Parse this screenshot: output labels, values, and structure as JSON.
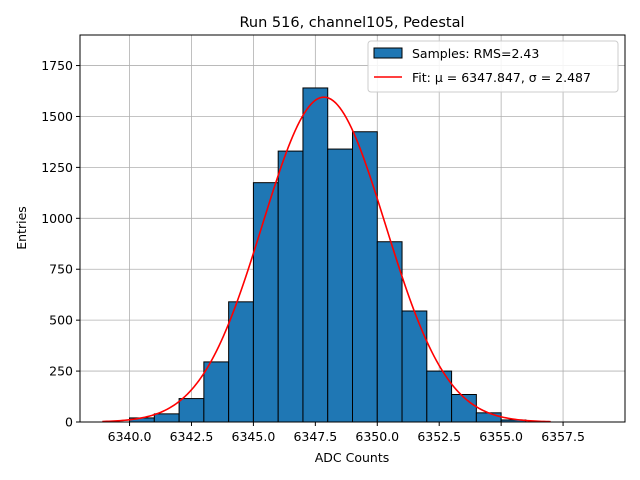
{
  "chart_data": {
    "type": "bar",
    "title": "Run 516, channel105, Pedestal",
    "xlabel": "ADC Counts",
    "ylabel": "Entries",
    "xlim": [
      6338.0,
      6360.0
    ],
    "ylim": [
      0,
      1900
    ],
    "grid": true,
    "legend_position": "top-right",
    "x_ticks": [
      {
        "value": 6340.0,
        "label": "6340.0"
      },
      {
        "value": 6342.5,
        "label": "6342.5"
      },
      {
        "value": 6345.0,
        "label": "6345.0"
      },
      {
        "value": 6347.5,
        "label": "6347.5"
      },
      {
        "value": 6350.0,
        "label": "6350.0"
      },
      {
        "value": 6352.5,
        "label": "6352.5"
      },
      {
        "value": 6355.0,
        "label": "6355.0"
      },
      {
        "value": 6357.5,
        "label": "6357.5"
      }
    ],
    "y_ticks": [
      {
        "value": 0,
        "label": "0"
      },
      {
        "value": 250,
        "label": "250"
      },
      {
        "value": 500,
        "label": "500"
      },
      {
        "value": 750,
        "label": "750"
      },
      {
        "value": 1000,
        "label": "1000"
      },
      {
        "value": 1250,
        "label": "1250"
      },
      {
        "value": 1500,
        "label": "1500"
      },
      {
        "value": 1750,
        "label": "1750"
      }
    ],
    "histogram": {
      "name": "Samples: RMS=2.43",
      "color": "#1f77b4",
      "edgecolor": "#000000",
      "bins": [
        {
          "x0": 6340.0,
          "x1": 6341.0,
          "count": 20
        },
        {
          "x0": 6341.0,
          "x1": 6342.0,
          "count": 40
        },
        {
          "x0": 6342.0,
          "x1": 6343.0,
          "count": 115
        },
        {
          "x0": 6343.0,
          "x1": 6344.0,
          "count": 295
        },
        {
          "x0": 6344.0,
          "x1": 6345.0,
          "count": 590
        },
        {
          "x0": 6345.0,
          "x1": 6346.0,
          "count": 1175
        },
        {
          "x0": 6346.0,
          "x1": 6347.0,
          "count": 1330
        },
        {
          "x0": 6347.0,
          "x1": 6348.0,
          "count": 1640
        },
        {
          "x0": 6348.0,
          "x1": 6349.0,
          "count": 1340
        },
        {
          "x0": 6349.0,
          "x1": 6350.0,
          "count": 1425
        },
        {
          "x0": 6350.0,
          "x1": 6351.0,
          "count": 885
        },
        {
          "x0": 6351.0,
          "x1": 6352.0,
          "count": 545
        },
        {
          "x0": 6352.0,
          "x1": 6353.0,
          "count": 250
        },
        {
          "x0": 6353.0,
          "x1": 6354.0,
          "count": 135
        },
        {
          "x0": 6354.0,
          "x1": 6355.0,
          "count": 45
        },
        {
          "x0": 6355.0,
          "x1": 6356.0,
          "count": 10
        }
      ]
    },
    "fit": {
      "name": "Fit: μ = 6347.847, σ = 2.487",
      "color": "#ff0000",
      "type": "gaussian",
      "mu": 6347.847,
      "sigma": 2.487,
      "amplitude": 1595,
      "x_range": [
        6338.9,
        6357.0
      ]
    }
  }
}
